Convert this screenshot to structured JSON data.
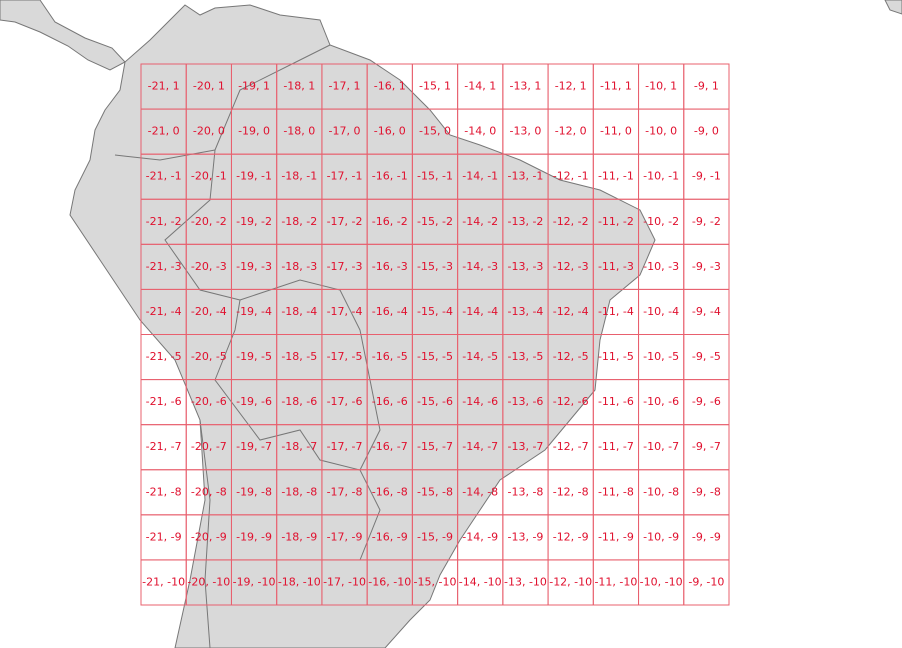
{
  "grid": {
    "rows": [
      [
        "-21, 1",
        "-20, 1",
        "-19, 1",
        "-18, 1",
        "-17, 1",
        "-16, 1",
        "-15, 1",
        "-14, 1",
        "-13, 1",
        "-12, 1",
        "-11, 1",
        "-10, 1",
        "-9, 1"
      ],
      [
        "-21, 0",
        "-20, 0",
        "-19, 0",
        "-18, 0",
        "-17, 0",
        "-16, 0",
        "-15, 0",
        "-14, 0",
        "-13, 0",
        "-12, 0",
        "-11, 0",
        "-10, 0",
        "-9, 0"
      ],
      [
        "-21, -1",
        "-20, -1",
        "-19, -1",
        "-18, -1",
        "-17, -1",
        "-16, -1",
        "-15, -1",
        "-14, -1",
        "-13, -1",
        "-12, -1",
        "-11, -1",
        "-10, -1",
        "-9, -1"
      ],
      [
        "-21, -2",
        "-20, -2",
        "-19, -2",
        "-18, -2",
        "-17, -2",
        "-16, -2",
        "-15, -2",
        "-14, -2",
        "-13, -2",
        "-12, -2",
        "-11, -2",
        "-10, -2",
        "-9, -2"
      ],
      [
        "-21, -3",
        "-20, -3",
        "-19, -3",
        "-18, -3",
        "-17, -3",
        "-16, -3",
        "-15, -3",
        "-14, -3",
        "-13, -3",
        "-12, -3",
        "-11, -3",
        "-10, -3",
        "-9, -3"
      ],
      [
        "-21, -4",
        "-20, -4",
        "-19, -4",
        "-18, -4",
        "-17, -4",
        "-16, -4",
        "-15, -4",
        "-14, -4",
        "-13, -4",
        "-12, -4",
        "-11, -4",
        "-10, -4",
        "-9, -4"
      ],
      [
        "-21, -5",
        "-20, -5",
        "-19, -5",
        "-18, -5",
        "-17, -5",
        "-16, -5",
        "-15, -5",
        "-14, -5",
        "-13, -5",
        "-12, -5",
        "-11, -5",
        "-10, -5",
        "-9, -5"
      ],
      [
        "-21, -6",
        "-20, -6",
        "-19, -6",
        "-18, -6",
        "-17, -6",
        "-16, -6",
        "-15, -6",
        "-14, -6",
        "-13, -6",
        "-12, -6",
        "-11, -6",
        "-10, -6",
        "-9, -6"
      ],
      [
        "-21, -7",
        "-20, -7",
        "-19, -7",
        "-18, -7",
        "-17, -7",
        "-16, -7",
        "-15, -7",
        "-14, -7",
        "-13, -7",
        "-12, -7",
        "-11, -7",
        "-10, -7",
        "-9, -7"
      ],
      [
        "-21, -8",
        "-20, -8",
        "-19, -8",
        "-18, -8",
        "-17, -8",
        "-16, -8",
        "-15, -8",
        "-14, -8",
        "-13, -8",
        "-12, -8",
        "-11, -8",
        "-10, -8",
        "-9, -8"
      ],
      [
        "-21, -9",
        "-20, -9",
        "-19, -9",
        "-18, -9",
        "-17, -9",
        "-16, -9",
        "-15, -9",
        "-14, -9",
        "-13, -9",
        "-12, -9",
        "-11, -9",
        "-10, -9",
        "-9, -9"
      ],
      [
        "-21, -10",
        "-20, -10",
        "-19, -10",
        "-18, -10",
        "-17, -10",
        "-16, -10",
        "-15, -10",
        "-14, -10",
        "-13, -10",
        "-12, -10",
        "-11, -10",
        "-10, -10",
        "-9, -10"
      ]
    ]
  }
}
